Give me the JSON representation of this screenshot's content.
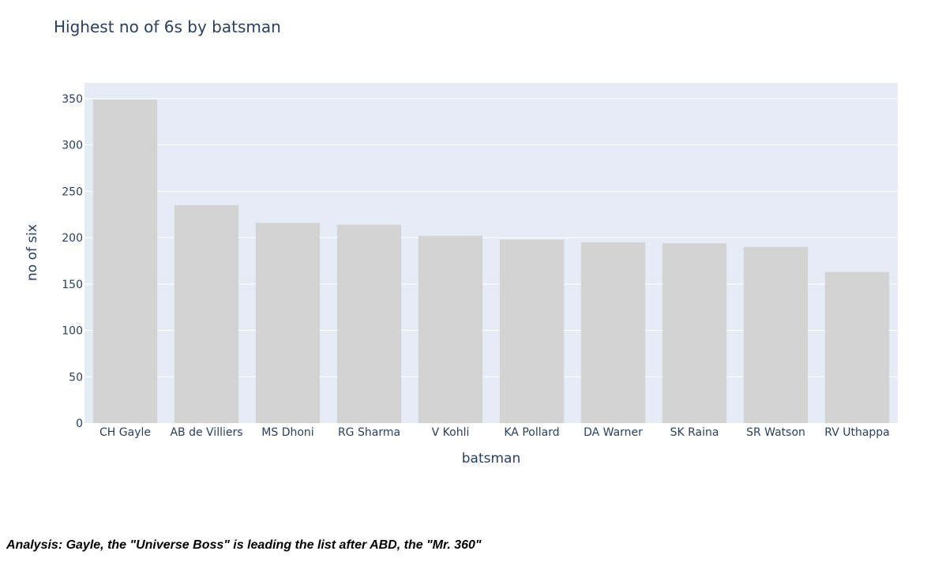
{
  "chart_data": {
    "type": "bar",
    "title": "Highest no of 6s by batsman",
    "xlabel": "batsman",
    "ylabel": "no of six",
    "categories": [
      "CH Gayle",
      "AB de Villiers",
      "MS Dhoni",
      "RG Sharma",
      "V Kohli",
      "KA Pollard",
      "DA Warner",
      "SK Raina",
      "SR Watson",
      "RV Uthappa"
    ],
    "values": [
      349,
      235,
      216,
      214,
      202,
      198,
      195,
      194,
      190,
      163
    ],
    "ylim": [
      0,
      367
    ],
    "yticks": [
      0,
      50,
      100,
      150,
      200,
      250,
      300,
      350
    ],
    "grid": true,
    "colors": {
      "bar": "#d3d3d3",
      "plot_bg": "#e5ecf6",
      "grid": "#ffffff",
      "text": "#2a3f5f"
    }
  },
  "analysis": "Analysis: Gayle, the \"Universe Boss\" is leading the list after ABD, the \"Mr. 360\""
}
